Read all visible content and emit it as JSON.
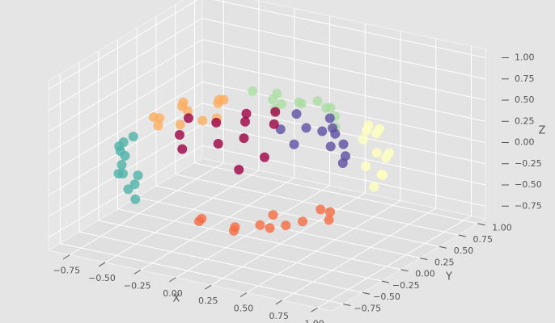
{
  "chart_data": {
    "type": "scatter3d",
    "xlabel": "X",
    "ylabel": "Y",
    "zlabel": "Z",
    "xlim": [
      -0.9,
      1.1
    ],
    "ylim": [
      -0.9,
      1.1
    ],
    "zlim": [
      -0.9,
      1.1
    ],
    "xticks": [
      {
        "value": -0.75,
        "label": "−0.75"
      },
      {
        "value": -0.5,
        "label": "−0.50"
      },
      {
        "value": -0.25,
        "label": "−0.25"
      },
      {
        "value": 0,
        "label": "0.00"
      },
      0.25,
      {
        "value": 0.5,
        "label": "0.50"
      },
      0.75,
      {
        "value": 1,
        "label": "1.00"
      }
    ],
    "yticks": [
      {
        "value": -0.75,
        "label": "−0.75"
      },
      {
        "value": -0.5,
        "label": "−0.50"
      },
      {
        "value": -0.25,
        "label": "−0.25"
      },
      {
        "value": 0,
        "label": "0.00"
      },
      0.25,
      {
        "value": 0.5,
        "label": "0.50"
      },
      0.75,
      {
        "value": 1,
        "label": "1.00"
      }
    ],
    "zticks": [
      {
        "value": -0.75,
        "label": "−0.75"
      },
      {
        "value": -0.5,
        "label": "−0.50"
      },
      {
        "value": -0.25,
        "label": "−0.25"
      },
      {
        "value": 0,
        "label": "0.00"
      },
      0.25,
      {
        "value": 0.5,
        "label": "0.50"
      },
      0.75,
      {
        "value": 1,
        "label": "1.00"
      }
    ],
    "grid": true,
    "series": [
      {
        "color": "#4fb3a9",
        "x": [
          -0.6,
          -0.7,
          -0.5,
          -0.65,
          -0.75,
          -0.4,
          -0.55,
          -0.7,
          -0.45,
          -0.8,
          -0.6,
          -0.35
        ],
        "y": [
          -0.5,
          -0.35,
          -0.6,
          -0.45,
          -0.2,
          -0.7,
          -0.55,
          -0.3,
          -0.6,
          -0.15,
          -0.35,
          -0.75
        ],
        "z": [
          0,
          0.1,
          -0.2,
          -0.15,
          0.05,
          -0.05,
          0.15,
          -0.25,
          -0.3,
          -0.1,
          0.25,
          0.1
        ]
      },
      {
        "color": "#fdae61",
        "x": [
          -0.6,
          -0.5,
          -0.7,
          -0.4,
          -0.65,
          -0.3,
          -0.55,
          -0.75,
          -0.45,
          -0.2,
          -0.35,
          -0.6
        ],
        "y": [
          0.3,
          0.1,
          0.1,
          0.4,
          0.45,
          0.2,
          -0.1,
          0.25,
          0.55,
          0,
          -0.2,
          0.55
        ],
        "z": [
          0.3,
          0.4,
          0.2,
          0.35,
          0.1,
          0.45,
          0.35,
          0,
          0.25,
          0.42,
          0.4,
          -0.05
        ]
      },
      {
        "color": "#abdda4",
        "x": [
          0,
          0.1,
          -0.15,
          0.2,
          -0.1,
          0.25,
          -0.25,
          0.05,
          0.3,
          -0.05,
          0.15,
          -0.3
        ],
        "y": [
          0.7,
          0.55,
          0.75,
          0.8,
          0.6,
          0.65,
          0.85,
          0.85,
          0.5,
          0.45,
          0.9,
          0.65
        ],
        "z": [
          0.3,
          0.4,
          0.2,
          0.15,
          0.42,
          0.35,
          0.05,
          0.25,
          0.45,
          0.45,
          -0.05,
          0.35
        ]
      },
      {
        "color": "#f46d43",
        "x": [
          0.5,
          0.3,
          0.65,
          0.2,
          0.45,
          0.7,
          0.1,
          0.55,
          0.35,
          0.75,
          0,
          0.6
        ],
        "y": [
          -0.6,
          -0.7,
          -0.45,
          -0.5,
          -0.3,
          -0.2,
          -0.75,
          -0.65,
          -0.45,
          -0.4,
          -0.6,
          0
        ],
        "z": [
          -0.3,
          -0.35,
          -0.25,
          -0.45,
          -0.45,
          -0.35,
          -0.25,
          -0.1,
          -0.4,
          -0.1,
          -0.4,
          -0.4
        ]
      },
      {
        "color": "#ffffbf",
        "x": [
          0.75,
          0.6,
          0.55,
          0.8,
          0.7,
          0.45,
          0.65,
          0.8,
          0.5,
          0.72,
          0.6,
          0.4
        ],
        "y": [
          0.45,
          0.6,
          0.7,
          0.3,
          0.5,
          0.75,
          0.55,
          0.4,
          0.65,
          0.35,
          0.5,
          0.8
        ],
        "z": [
          0.05,
          0.2,
          -0.1,
          -0.05,
          -0.2,
          0.1,
          0.3,
          0.15,
          -0.25,
          -0.25,
          0.35,
          -0.05
        ]
      },
      {
        "color": "#5e4fa2",
        "x": [
          0.4,
          0.5,
          0.3,
          0.55,
          0.2,
          0.45,
          0.6,
          0.35,
          0.25,
          0.5,
          0.4,
          0.3
        ],
        "y": [
          0.4,
          0.25,
          0.55,
          0.1,
          0.3,
          0.45,
          0.2,
          0.15,
          0,
          0.35,
          -0.1,
          0.45
        ],
        "z": [
          0.3,
          0.35,
          0.3,
          0.3,
          0.45,
          0.1,
          0.15,
          0.42,
          0.45,
          -0.05,
          0.38,
          0.2
        ]
      },
      {
        "color": "#9e0142",
        "x": [
          0,
          -0.1,
          0.1,
          -0.3,
          0.15,
          -0.2,
          0.3,
          0,
          -0.15,
          0.2,
          -0.4,
          0.05
        ],
        "y": [
          0,
          0.2,
          -0.2,
          -0.3,
          0.1,
          -0.45,
          -0.3,
          -0.35,
          -0.1,
          -0.45,
          0,
          0.3
        ],
        "z": [
          0.45,
          0.4,
          0.4,
          0.35,
          0.42,
          0.3,
          0.3,
          0.38,
          0.44,
          0.2,
          0.35,
          0.42
        ]
      }
    ]
  }
}
